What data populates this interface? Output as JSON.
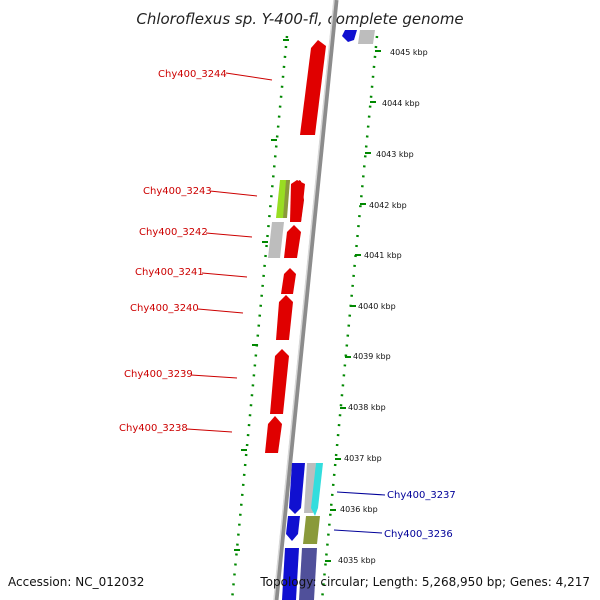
{
  "title": "Chloroflexus sp. Y-400-fl, complete genome",
  "footer": {
    "accession": "Accession: NC_012032",
    "topology": "Topology: circular; Length: 5,268,950 bp; Genes: 4,217"
  },
  "colors": {
    "reverse_gene": "#e00000",
    "forward_gene": "#1010d0",
    "gray_gene": "#bdbdbd",
    "green_gene": "#99dd22",
    "olive_gene": "#8a9a3a",
    "cyan_gene": "#33dddd",
    "purple_gene": "#50509a",
    "dotted_track": "#008800",
    "backbone": "#8c8c8c"
  },
  "scale_labels": [
    "4045 kbp",
    "4044 kbp",
    "4043 kbp",
    "4042 kbp",
    "4041 kbp",
    "4040 kbp",
    "4039 kbp",
    "4038 kbp",
    "4037 kbp",
    "4036 kbp",
    "4035 kbp"
  ],
  "gene_labels": [
    {
      "text": "Chy400_3244",
      "strand": "reverse"
    },
    {
      "text": "Chy400_3243",
      "strand": "reverse"
    },
    {
      "text": "Chy400_3242",
      "strand": "reverse"
    },
    {
      "text": "Chy400_3241",
      "strand": "reverse"
    },
    {
      "text": "Chy400_3240",
      "strand": "reverse"
    },
    {
      "text": "Chy400_3239",
      "strand": "reverse"
    },
    {
      "text": "Chy400_3238",
      "strand": "reverse"
    },
    {
      "text": "Chy400_3237",
      "strand": "forward"
    },
    {
      "text": "Chy400_3236",
      "strand": "forward"
    }
  ]
}
